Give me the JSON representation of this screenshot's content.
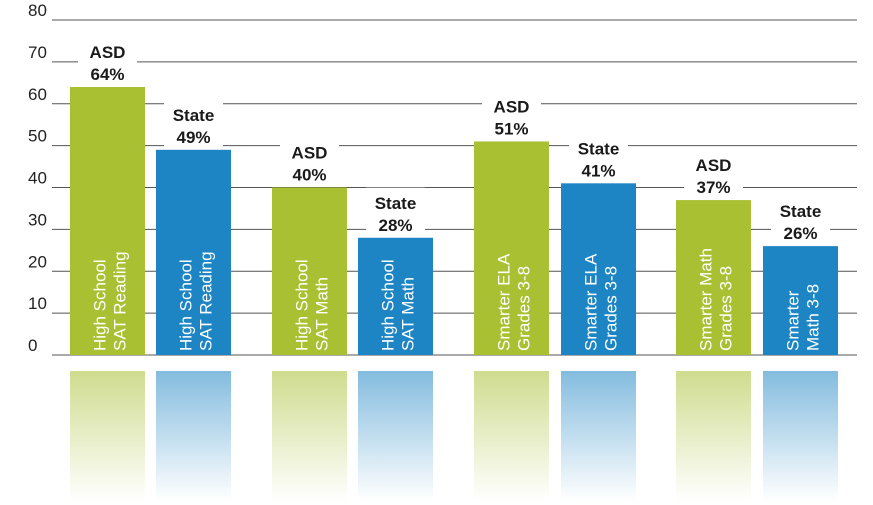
{
  "chart_data": {
    "type": "bar",
    "ylim": [
      0,
      80
    ],
    "yticks": [
      "0",
      "10",
      "20",
      "30",
      "40",
      "50",
      "60",
      "70",
      "80"
    ],
    "grid": true,
    "colors": {
      "asd": "#a8c032",
      "state": "#1e85c4"
    },
    "bars": [
      {
        "group": "ASD",
        "value": 64,
        "pct": "64%",
        "line1": "High School",
        "line2": "SAT Reading",
        "color": "#a8c032"
      },
      {
        "group": "State",
        "value": 49,
        "pct": "49%",
        "line1": "High School",
        "line2": "SAT Reading",
        "color": "#1e85c4"
      },
      {
        "group": "ASD",
        "value": 40,
        "pct": "40%",
        "line1": "High School",
        "line2": "SAT Math",
        "color": "#a8c032"
      },
      {
        "group": "State",
        "value": 28,
        "pct": "28%",
        "line1": "High School",
        "line2": "SAT Math",
        "color": "#1e85c4"
      },
      {
        "group": "ASD",
        "value": 51,
        "pct": "51%",
        "line1": "Smarter ELA",
        "line2": "Grades 3-8",
        "color": "#a8c032"
      },
      {
        "group": "State",
        "value": 41,
        "pct": "41%",
        "line1": "Smarter ELA",
        "line2": "Grades 3-8",
        "color": "#1e85c4"
      },
      {
        "group": "ASD",
        "value": 37,
        "pct": "37%",
        "line1": "Smarter Math",
        "line2": "Grades 3-8",
        "color": "#a8c032"
      },
      {
        "group": "State",
        "value": 26,
        "pct": "26%",
        "line1": "Smarter",
        "line2": "Math 3-8",
        "color": "#1e85c4"
      }
    ]
  }
}
